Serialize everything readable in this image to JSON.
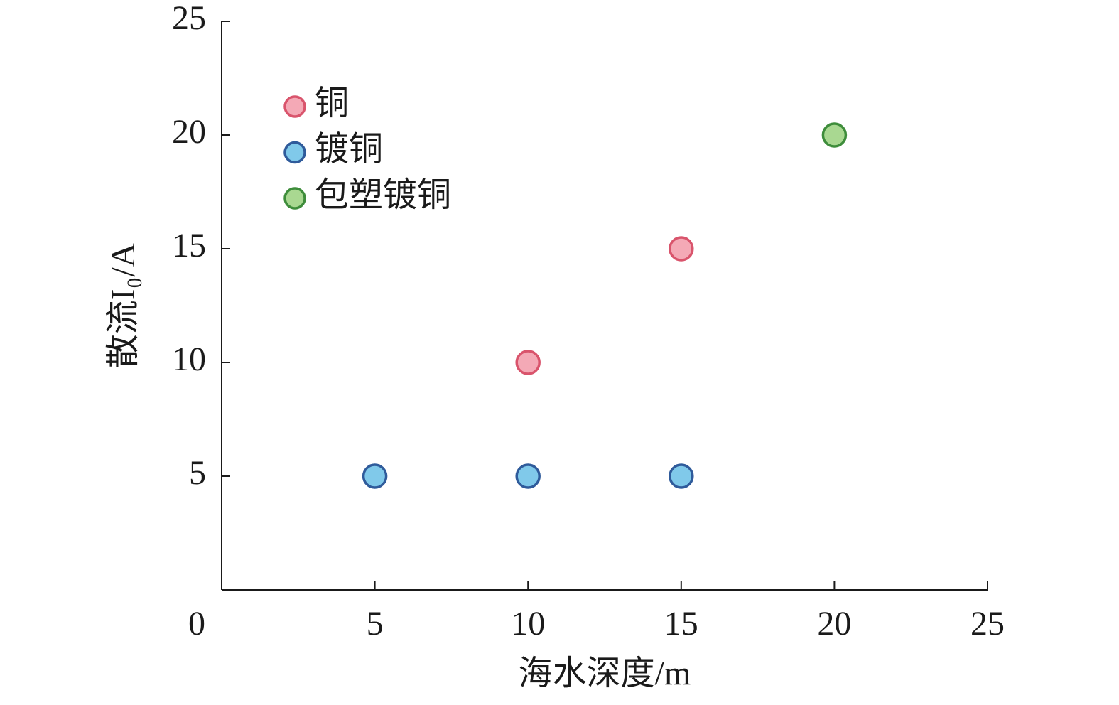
{
  "chart_data": {
    "type": "scatter",
    "x_label": "海水深度/m",
    "y_label": "散流I₀/A",
    "xlim": [
      0,
      25
    ],
    "xticks": [
      0,
      5,
      10,
      15,
      20,
      25
    ],
    "ylim": [
      0,
      25
    ],
    "yticks": [
      5,
      10,
      15,
      20,
      25
    ],
    "legend": "upper left",
    "series": [
      {
        "name": "铜",
        "fill": "#f4a9b6",
        "color": "#d9546c",
        "x": [
          10,
          15
        ],
        "values": [
          10,
          15
        ]
      },
      {
        "name": "镀铜",
        "fill": "#80c9ea",
        "color": "#2f5b9b",
        "x": [
          5,
          10,
          15
        ],
        "values": [
          5,
          5,
          5
        ]
      },
      {
        "name": "包塑镀铜",
        "fill": "#a9d891",
        "color": "#3e8d3b",
        "x": [
          20
        ],
        "values": [
          20
        ]
      }
    ]
  }
}
